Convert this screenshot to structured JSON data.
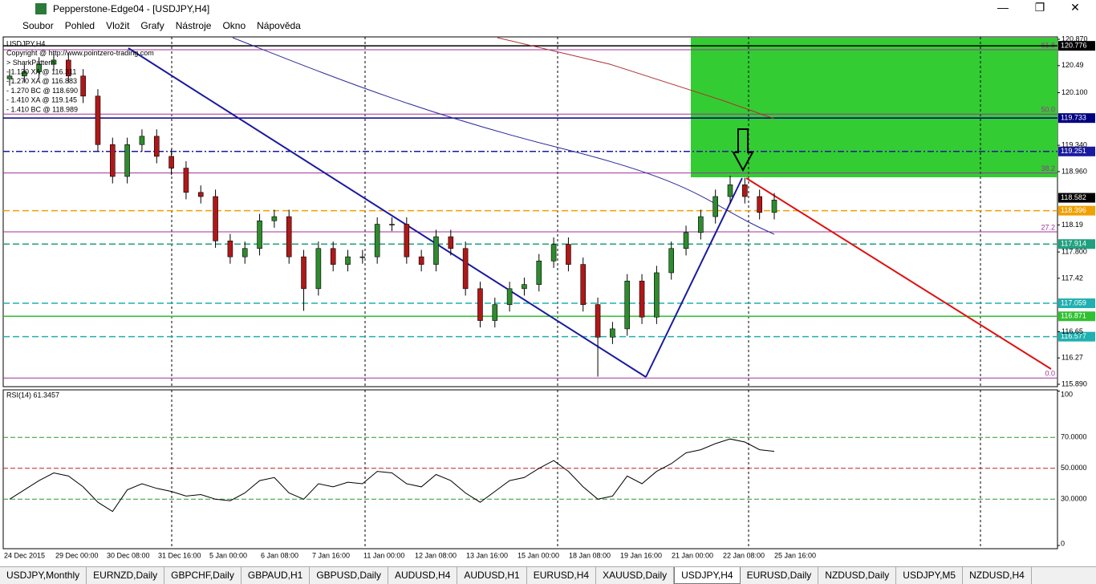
{
  "window": {
    "title": "Pepperstone-Edge04 - [USDJPY,H4]"
  },
  "menu": [
    "Soubor",
    "Pohled",
    "Vložit",
    "Grafy",
    "Nástroje",
    "Okno",
    "Nápověda"
  ],
  "chart": {
    "info": [
      "USDJPY,H4",
      "Copyright @ http://www.pointzero-trading.com",
      "> SharkPattern",
      "- 1.130 XA @ 116.311",
      "- 1.270 XA @ 116.883",
      "- 1.270 BC @ 118.690",
      "- 1.410 XA @ 119.145",
      "- 1.410 BC @ 118.989"
    ],
    "ylim": [
      115.89,
      120.87
    ],
    "yticks": [
      {
        "value": 120.87,
        "label": "120.870"
      },
      120.49,
      {
        "value": 120.1,
        "label": "120.100"
      },
      {
        "value": 119.34,
        "label": "119.340"
      },
      {
        "value": 118.96,
        "label": "118.960"
      },
      118.19,
      {
        "value": 117.8,
        "label": "117.800"
      },
      117.42,
      116.65,
      116.27,
      {
        "value": 115.89,
        "label": "115.890"
      }
    ],
    "levels": [
      {
        "value": 120.776,
        "color": "#000000",
        "text_color": "#ffffff",
        "style": "solid"
      },
      {
        "value": 119.733,
        "color": "#000080",
        "text_color": "#ffffff",
        "style": "solid"
      },
      {
        "value": 119.251,
        "color": "#1a1aa0",
        "text_color": "#ffffff",
        "style": "dashdot"
      },
      {
        "value": 118.582,
        "color": "#000000",
        "text_color": "#ffffff",
        "style": "none"
      },
      {
        "value": 118.396,
        "color": "#f0a000",
        "text_color": "#ffffff",
        "style": "dash"
      },
      {
        "value": 117.914,
        "color": "#20a080",
        "text_color": "#ffffff",
        "style": "dash"
      },
      {
        "value": 117.059,
        "color": "#20b0b0",
        "text_color": "#ffffff",
        "style": "dash"
      },
      {
        "value": 116.871,
        "color": "#30c030",
        "text_color": "#ffffff",
        "style": "solid"
      },
      {
        "value": 116.577,
        "color": "#20b0b0",
        "text_color": "#ffffff",
        "style": "dash"
      }
    ],
    "fib": [
      {
        "label": "61.8",
        "value": 120.72
      },
      {
        "label": "50.0",
        "value": 119.79
      },
      {
        "label": "38.2",
        "value": 118.94
      },
      {
        "label": "27.2",
        "value": 118.09
      },
      {
        "label": "0.0",
        "value": 115.98
      }
    ],
    "candles": {
      "open": [
        120.3,
        120.34,
        120.4,
        120.51,
        120.57,
        120.34,
        120.05,
        119.35,
        118.89,
        119.35,
        119.47,
        119.18,
        119.01,
        118.66,
        118.6,
        117.96,
        117.73,
        117.85,
        118.25,
        118.31,
        117.73,
        117.27,
        117.85,
        117.62,
        117.73,
        117.73,
        118.2,
        118.2,
        117.73,
        117.62,
        118.02,
        117.85,
        117.27,
        116.81,
        117.04,
        117.27,
        117.33,
        117.67,
        117.91,
        117.62,
        117.04,
        116.57,
        116.69,
        117.38,
        116.86,
        117.5,
        117.85,
        118.08,
        118.31,
        118.6,
        118.77,
        118.6,
        118.37
      ],
      "high": [
        120.44,
        120.5,
        120.61,
        120.67,
        120.67,
        120.44,
        120.15,
        119.45,
        119.45,
        119.57,
        119.57,
        119.28,
        119.11,
        118.76,
        118.7,
        118.06,
        117.95,
        118.35,
        118.41,
        118.41,
        117.83,
        117.95,
        117.95,
        117.83,
        117.83,
        118.3,
        118.3,
        118.3,
        117.83,
        118.12,
        118.12,
        117.95,
        117.37,
        117.14,
        117.37,
        117.43,
        117.77,
        118.01,
        118.01,
        117.72,
        117.14,
        116.79,
        117.48,
        117.48,
        117.6,
        117.95,
        118.18,
        118.41,
        118.7,
        118.9,
        118.87,
        118.7,
        118.65
      ],
      "low": [
        120.2,
        120.24,
        120.3,
        120.41,
        120.24,
        119.95,
        119.25,
        118.79,
        118.79,
        119.25,
        119.08,
        118.91,
        118.56,
        118.5,
        117.86,
        117.63,
        117.63,
        117.75,
        118.15,
        117.63,
        116.95,
        117.17,
        117.52,
        117.52,
        117.63,
        117.63,
        118.1,
        117.63,
        117.52,
        117.52,
        117.75,
        117.17,
        116.71,
        116.71,
        116.94,
        117.17,
        117.23,
        117.57,
        117.52,
        116.94,
        116.0,
        116.47,
        116.59,
        116.76,
        116.76,
        117.4,
        117.75,
        117.98,
        118.21,
        118.5,
        118.5,
        118.27,
        118.27
      ],
      "close": [
        120.34,
        120.4,
        120.51,
        120.57,
        120.34,
        120.05,
        119.35,
        118.89,
        119.35,
        119.47,
        119.18,
        119.01,
        118.66,
        118.6,
        117.96,
        117.73,
        117.85,
        118.25,
        118.31,
        117.73,
        117.27,
        117.85,
        117.62,
        117.73,
        117.73,
        118.2,
        118.2,
        117.73,
        117.62,
        118.02,
        117.85,
        117.27,
        116.81,
        117.04,
        117.27,
        117.33,
        117.67,
        117.91,
        117.62,
        117.04,
        116.57,
        116.69,
        117.38,
        116.86,
        117.5,
        117.85,
        118.08,
        118.31,
        118.6,
        118.77,
        118.6,
        118.37,
        118.55
      ]
    },
    "dates": [
      "24 Dec 2015",
      "29 Dec 00:00",
      "30 Dec 08:00",
      "31 Dec 16:00",
      "5 Jan 00:00",
      "6 Jan 08:00",
      "7 Jan 16:00",
      "11 Jan 00:00",
      "12 Jan 08:00",
      "13 Jan 16:00",
      "15 Jan 00:00",
      "18 Jan 08:00",
      "19 Jan 16:00",
      "21 Jan 00:00",
      "22 Jan 08:00",
      "25 Jan 16:00"
    ]
  },
  "rsi": {
    "title": "RSI(14) 61.3457",
    "ylim": [
      0,
      100
    ],
    "yticks": [
      100,
      {
        "value": 70,
        "label": "70.0000"
      },
      {
        "value": 50,
        "label": "50.0000"
      },
      {
        "value": 30,
        "label": "30.0000"
      },
      0
    ],
    "values": [
      30,
      36,
      42,
      47,
      45,
      38,
      28,
      22,
      36,
      40,
      37,
      35,
      32,
      33,
      30,
      29,
      34,
      42,
      44,
      34,
      30,
      40,
      38,
      41,
      40,
      48,
      47,
      40,
      38,
      46,
      42,
      34,
      28,
      35,
      42,
      44,
      50,
      55,
      48,
      38,
      30,
      32,
      45,
      40,
      48,
      53,
      60,
      62,
      66,
      69,
      67,
      62,
      61
    ]
  },
  "tabs": [
    "USDJPY,Monthly",
    "EURNZD,Daily",
    "GBPCHF,Daily",
    "GBPAUD,H1",
    "GBPUSD,Daily",
    "AUDUSD,H4",
    "AUDUSD,H1",
    "EURUSD,H4",
    "XAUUSD,Daily",
    "USDJPY,H4",
    "EURUSD,Daily",
    "NZDUSD,Daily",
    "USDJPY,M5",
    "NZDUSD,H4"
  ],
  "active_tab": 9
}
